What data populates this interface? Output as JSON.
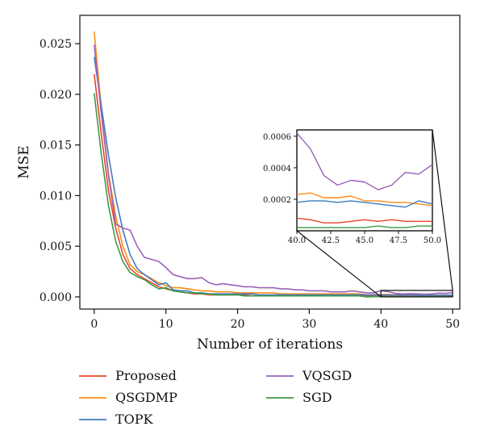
{
  "chart_data": {
    "type": "line",
    "xlabel": "Number of iterations",
    "ylabel": "MSE",
    "xlim": [
      -2,
      51
    ],
    "ylim": [
      -0.0012,
      0.0278
    ],
    "xticks": [
      "0",
      "10",
      "20",
      "30",
      "40",
      "50"
    ],
    "yticks": [
      "0.000",
      "0.005",
      "0.010",
      "0.015",
      "0.020",
      "0.025"
    ],
    "grid": false,
    "legend_position": "bottom",
    "x": [
      0,
      1,
      2,
      3,
      4,
      5,
      6,
      7,
      8,
      9,
      10,
      11,
      12,
      13,
      14,
      15,
      16,
      17,
      18,
      19,
      20,
      21,
      22,
      23,
      24,
      25,
      26,
      27,
      28,
      29,
      30,
      31,
      32,
      33,
      34,
      35,
      36,
      37,
      38,
      39,
      40,
      41,
      42,
      43,
      44,
      45,
      46,
      47,
      48,
      49,
      50
    ],
    "series": [
      {
        "name": "Proposed",
        "color": "#e8462a",
        "values": [
          0.022,
          0.016,
          0.0105,
          0.0068,
          0.0042,
          0.0028,
          0.0022,
          0.0018,
          0.0014,
          0.001,
          0.0008,
          0.0006,
          0.0005,
          0.0004,
          0.0003,
          0.0003,
          0.0002,
          0.0002,
          0.0002,
          0.0002,
          0.0002,
          0.0002,
          0.0001,
          0.0001,
          0.0001,
          0.0001,
          0.0001,
          0.0001,
          0.0001,
          0.0001,
          0.0001,
          0.0001,
          0.0001,
          0.0001,
          0.0001,
          0.0001,
          0.0001,
          0.0001,
          0.0001,
          8e-05,
          8e-05,
          7e-05,
          5e-05,
          5e-05,
          6e-05,
          7e-05,
          6e-05,
          7e-05,
          6e-05,
          6e-05,
          6e-05
        ]
      },
      {
        "name": "QSGDMP",
        "color": "#ff8c1a",
        "values": [
          0.0262,
          0.0185,
          0.0122,
          0.008,
          0.005,
          0.0032,
          0.0025,
          0.0022,
          0.0018,
          0.0014,
          0.0011,
          0.0009,
          0.0009,
          0.0008,
          0.0007,
          0.0006,
          0.0006,
          0.0005,
          0.0005,
          0.0005,
          0.0004,
          0.0004,
          0.0004,
          0.0004,
          0.0004,
          0.0004,
          0.0003,
          0.0003,
          0.0003,
          0.0003,
          0.0003,
          0.0003,
          0.0003,
          0.0003,
          0.0003,
          0.0003,
          0.0003,
          0.0003,
          0.0002,
          0.00022,
          0.00023,
          0.00024,
          0.00021,
          0.00021,
          0.00022,
          0.00019,
          0.00019,
          0.00018,
          0.00018,
          0.00017,
          0.00016
        ]
      },
      {
        "name": "TOPK",
        "color": "#3f7cc1",
        "values": [
          0.0237,
          0.0188,
          0.014,
          0.0098,
          0.0066,
          0.0042,
          0.0028,
          0.0022,
          0.0017,
          0.0012,
          0.0014,
          0.0007,
          0.0006,
          0.0006,
          0.0004,
          0.0004,
          0.0003,
          0.0003,
          0.0003,
          0.0003,
          0.0003,
          0.0003,
          0.0003,
          0.0002,
          0.0002,
          0.0002,
          0.0002,
          0.0002,
          0.0002,
          0.0002,
          0.0002,
          0.0002,
          0.0002,
          0.0002,
          0.0002,
          0.0002,
          0.0002,
          0.0002,
          0.0002,
          0.0002,
          0.00018,
          0.00019,
          0.00019,
          0.00018,
          0.00019,
          0.00018,
          0.00017,
          0.00016,
          0.00015,
          0.00019,
          0.00017
        ]
      },
      {
        "name": "VQSGD",
        "color": "#9a62b8",
        "values": [
          0.0249,
          0.018,
          0.012,
          0.0072,
          0.0068,
          0.0066,
          0.005,
          0.0039,
          0.0037,
          0.0035,
          0.0029,
          0.0022,
          0.002,
          0.0018,
          0.0018,
          0.0019,
          0.0014,
          0.0012,
          0.0013,
          0.0012,
          0.0011,
          0.001,
          0.001,
          0.0009,
          0.0009,
          0.0009,
          0.0008,
          0.0008,
          0.0007,
          0.0007,
          0.0006,
          0.0006,
          0.0006,
          0.0005,
          0.0005,
          0.0005,
          0.0006,
          0.0005,
          0.0004,
          0.0004,
          0.00062,
          0.00052,
          0.00035,
          0.00029,
          0.00032,
          0.00031,
          0.00026,
          0.00029,
          0.00037,
          0.00036,
          0.00042
        ]
      },
      {
        "name": "SGD",
        "color": "#3c9a4a",
        "values": [
          0.0201,
          0.014,
          0.009,
          0.0055,
          0.0035,
          0.0024,
          0.002,
          0.0017,
          0.0012,
          0.0008,
          0.0009,
          0.0006,
          0.0005,
          0.0004,
          0.0004,
          0.0003,
          0.0003,
          0.0002,
          0.0002,
          0.0002,
          0.0002,
          0.0001,
          0.0001,
          0.0001,
          0.0001,
          0.0001,
          0.0001,
          0.0001,
          0.0001,
          0.0001,
          0.0001,
          0.0001,
          0.0001,
          0.0001,
          0.0001,
          0.0001,
          0.0001,
          0.0001,
          0.0,
          3e-05,
          2e-05,
          2e-05,
          2e-05,
          2e-05,
          2e-05,
          2e-05,
          3e-05,
          2e-05,
          2e-05,
          3e-05,
          3e-05
        ]
      }
    ],
    "inset": {
      "xlim": [
        40,
        50
      ],
      "ylim": [
        0.0,
        0.00064
      ],
      "xticks": [
        "40.0",
        "42.5",
        "45.0",
        "47.5",
        "50.0"
      ],
      "yticks": [
        "0.0002",
        "0.0004",
        "0.0006"
      ]
    }
  }
}
